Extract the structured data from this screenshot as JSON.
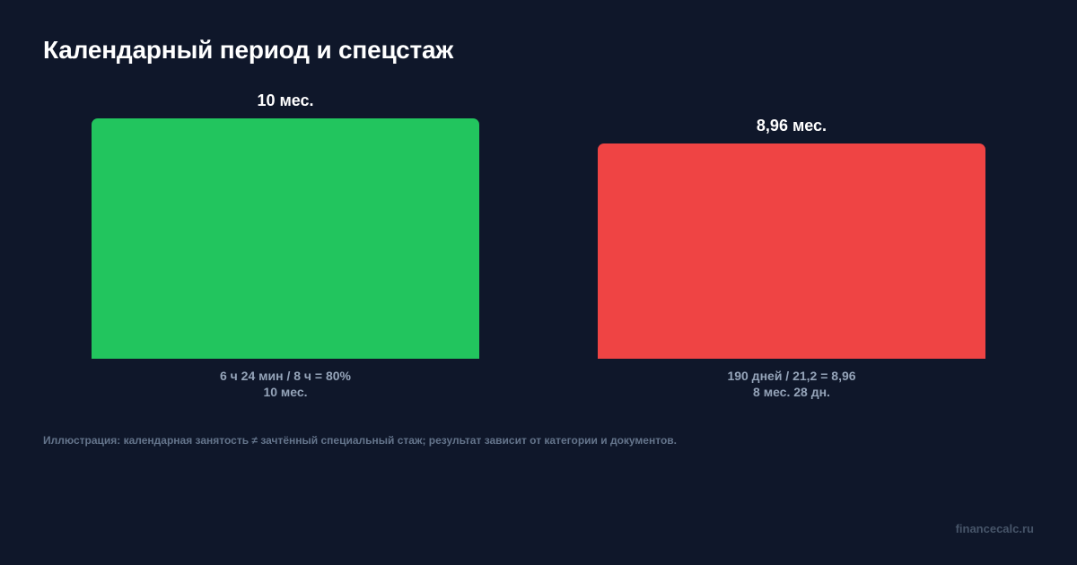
{
  "title": "Календарный период и спецстаж",
  "note": "Иллюстрация: календарная занятость ≠ зачтённый специальный стаж; результат зависит от категории и документов.",
  "watermark": "financecalc.ru",
  "colors": {
    "background": "#0f172a",
    "bar_calendar": "#22c55e",
    "bar_special": "#ef4444",
    "caption": "#94a3b8"
  },
  "chart_data": {
    "type": "bar",
    "unit": "мес.",
    "ylim": [
      0,
      10
    ],
    "grid": false,
    "legend": "none",
    "bars": [
      {
        "value": 10,
        "value_label": "10 мес.",
        "color": "#22c55e",
        "caption_line1": "6 ч 24 мин / 8 ч = 80%",
        "caption_line2": "10 мес."
      },
      {
        "value": 8.96,
        "value_label": "8,96 мес.",
        "color": "#ef4444",
        "caption_line1": "190 дней / 21,2 = 8,96",
        "caption_line2": "8 мес. 28 дн."
      }
    ]
  }
}
